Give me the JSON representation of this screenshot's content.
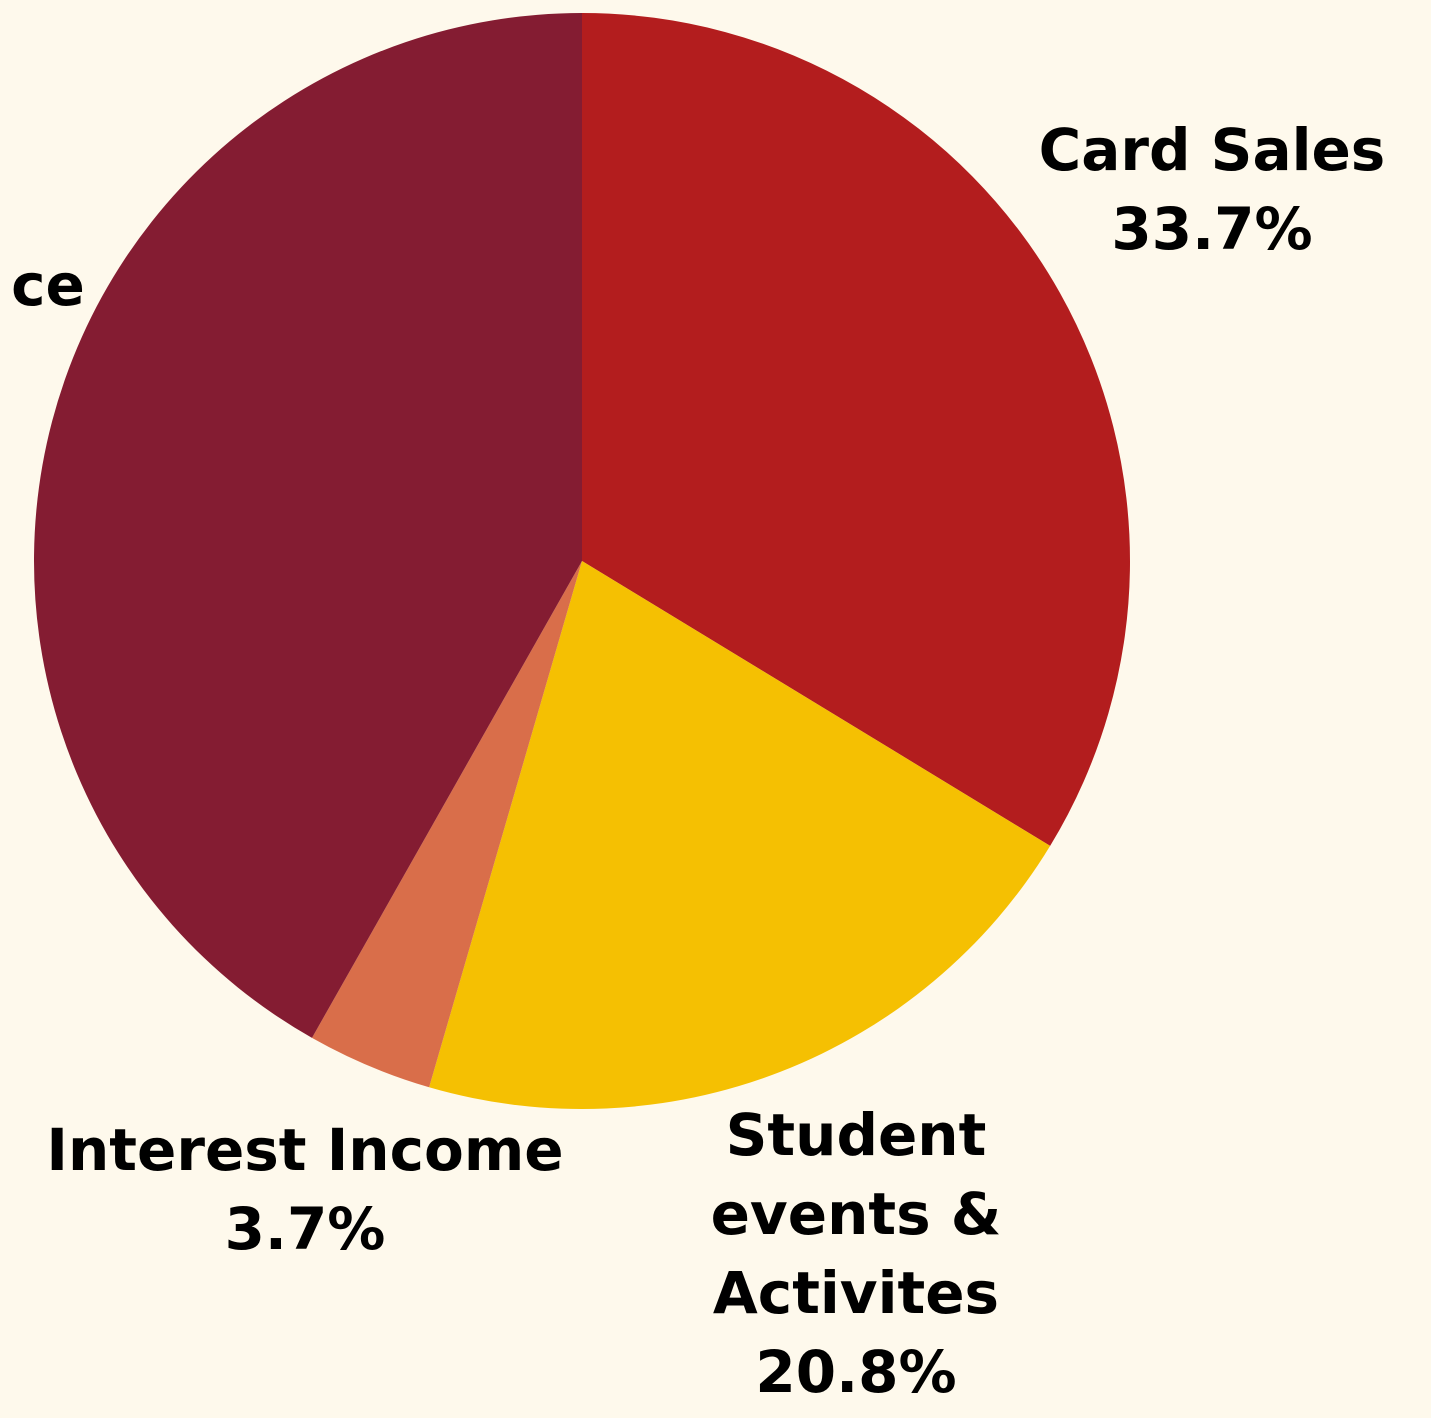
{
  "chart_data": {
    "type": "pie",
    "categories": [
      "Card Sales",
      "Student events & Activites",
      "Interest Income",
      "ce"
    ],
    "values": [
      33.7,
      20.8,
      3.7,
      41.8
    ],
    "value_labels": [
      "33.7%",
      "20.8%",
      "3.7%",
      null
    ],
    "colors": [
      "#b31d1e",
      "#f5c002",
      "#d96e4a",
      "#841c32"
    ]
  }
}
